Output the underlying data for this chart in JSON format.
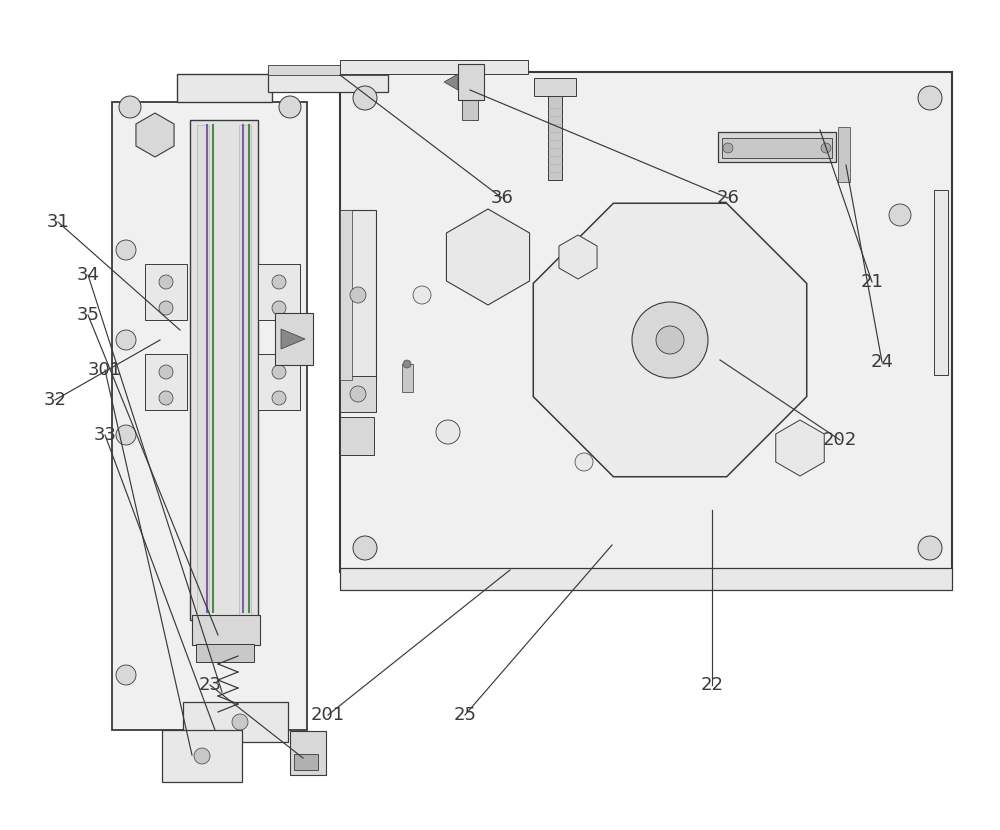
{
  "bg_color": "#ffffff",
  "lc": "#3a3a3a",
  "lc_l": "#aaaaaa",
  "purple": "#7b5ea7",
  "green": "#4a8a4a",
  "fc_plate": "#f0f0f0",
  "fc_mid": "#e8e8e8",
  "fc_dark": "#d8d8d8",
  "fc_darker": "#c8c8c8",
  "label_fs": 13,
  "figsize": [
    10.0,
    8.3
  ],
  "dpi": 100
}
